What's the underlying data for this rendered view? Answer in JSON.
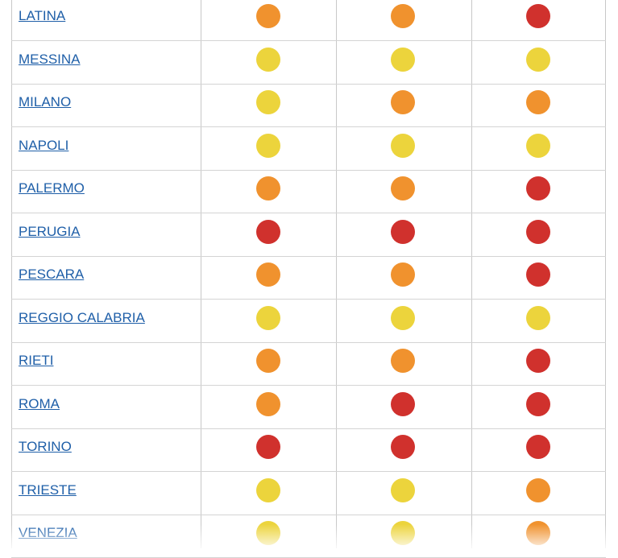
{
  "table": {
    "rows": [
      {
        "city": "LATINA",
        "dots": [
          "#f0922e",
          "#f0922e",
          "#d0312d"
        ]
      },
      {
        "city": "MESSINA",
        "dots": [
          "#ecd43c",
          "#ecd43c",
          "#ecd43c"
        ]
      },
      {
        "city": "MILANO",
        "dots": [
          "#ecd43c",
          "#f0922e",
          "#f0922e"
        ]
      },
      {
        "city": "NAPOLI",
        "dots": [
          "#ecd43c",
          "#ecd43c",
          "#ecd43c"
        ]
      },
      {
        "city": "PALERMO",
        "dots": [
          "#f0922e",
          "#f0922e",
          "#d0312d"
        ]
      },
      {
        "city": "PERUGIA",
        "dots": [
          "#d0312d",
          "#d0312d",
          "#d0312d"
        ]
      },
      {
        "city": "PESCARA",
        "dots": [
          "#f0922e",
          "#f0922e",
          "#d0312d"
        ]
      },
      {
        "city": "REGGIO CALABRIA",
        "dots": [
          "#ecd43c",
          "#ecd43c",
          "#ecd43c"
        ]
      },
      {
        "city": "RIETI",
        "dots": [
          "#f0922e",
          "#f0922e",
          "#d0312d"
        ]
      },
      {
        "city": "ROMA",
        "dots": [
          "#f0922e",
          "#d0312d",
          "#d0312d"
        ]
      },
      {
        "city": "TORINO",
        "dots": [
          "#d0312d",
          "#d0312d",
          "#d0312d"
        ]
      },
      {
        "city": "TRIESTE",
        "dots": [
          "#ecd43c",
          "#ecd43c",
          "#f0922e"
        ]
      },
      {
        "city": "VENEZIA",
        "dots": [
          "#ecd43c",
          "#ecd43c",
          "#f0922e"
        ]
      }
    ]
  }
}
